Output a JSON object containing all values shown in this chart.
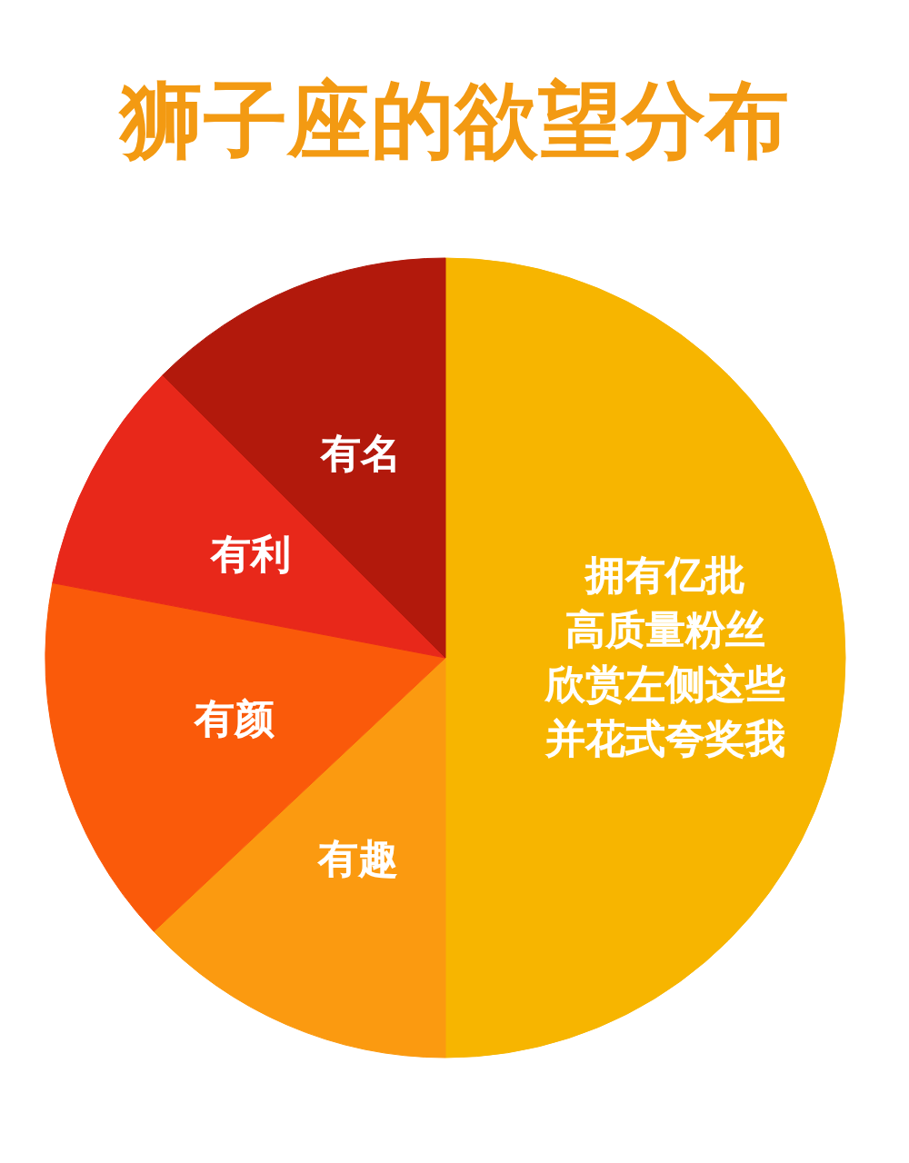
{
  "chart_data": {
    "type": "pie",
    "title": "狮子座的欲望分布",
    "categories": [
      "拥有亿批高质量粉丝欣赏左侧这些并花式夸奖我",
      "有趣",
      "有颜",
      "有利",
      "有名"
    ],
    "values": [
      50,
      13,
      15,
      9.5,
      12.5
    ],
    "colors": [
      "#f7b500",
      "#fb9a10",
      "#fa5a0a",
      "#e8281a",
      "#b2190c"
    ]
  }
}
